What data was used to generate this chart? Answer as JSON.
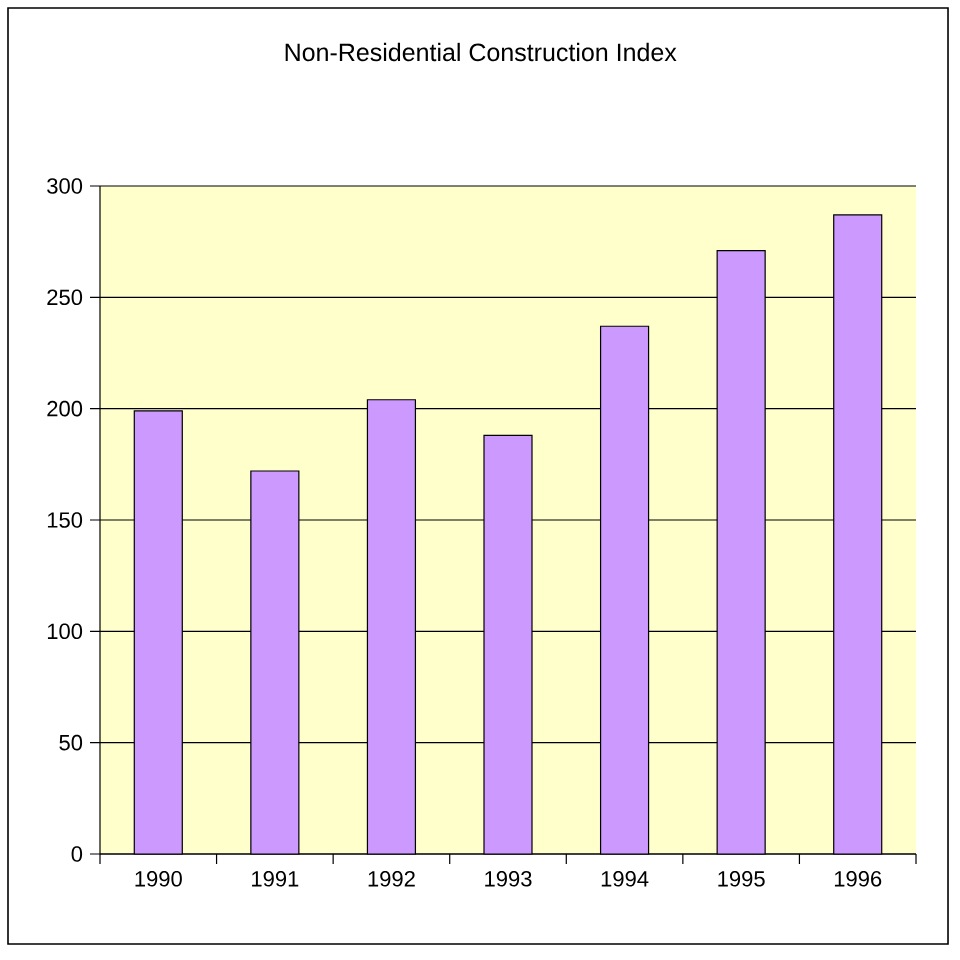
{
  "chart_data": {
    "type": "bar",
    "title": "Non-Residential Construction Index",
    "categories": [
      "1990",
      "1991",
      "1992",
      "1993",
      "1994",
      "1995",
      "1996"
    ],
    "values": [
      199,
      172,
      204,
      188,
      237,
      271,
      287
    ],
    "color": "#cc99ff",
    "ylim": [
      0,
      300
    ],
    "yticks": [
      0,
      50,
      100,
      150,
      200,
      250,
      300
    ],
    "grid": "y"
  }
}
